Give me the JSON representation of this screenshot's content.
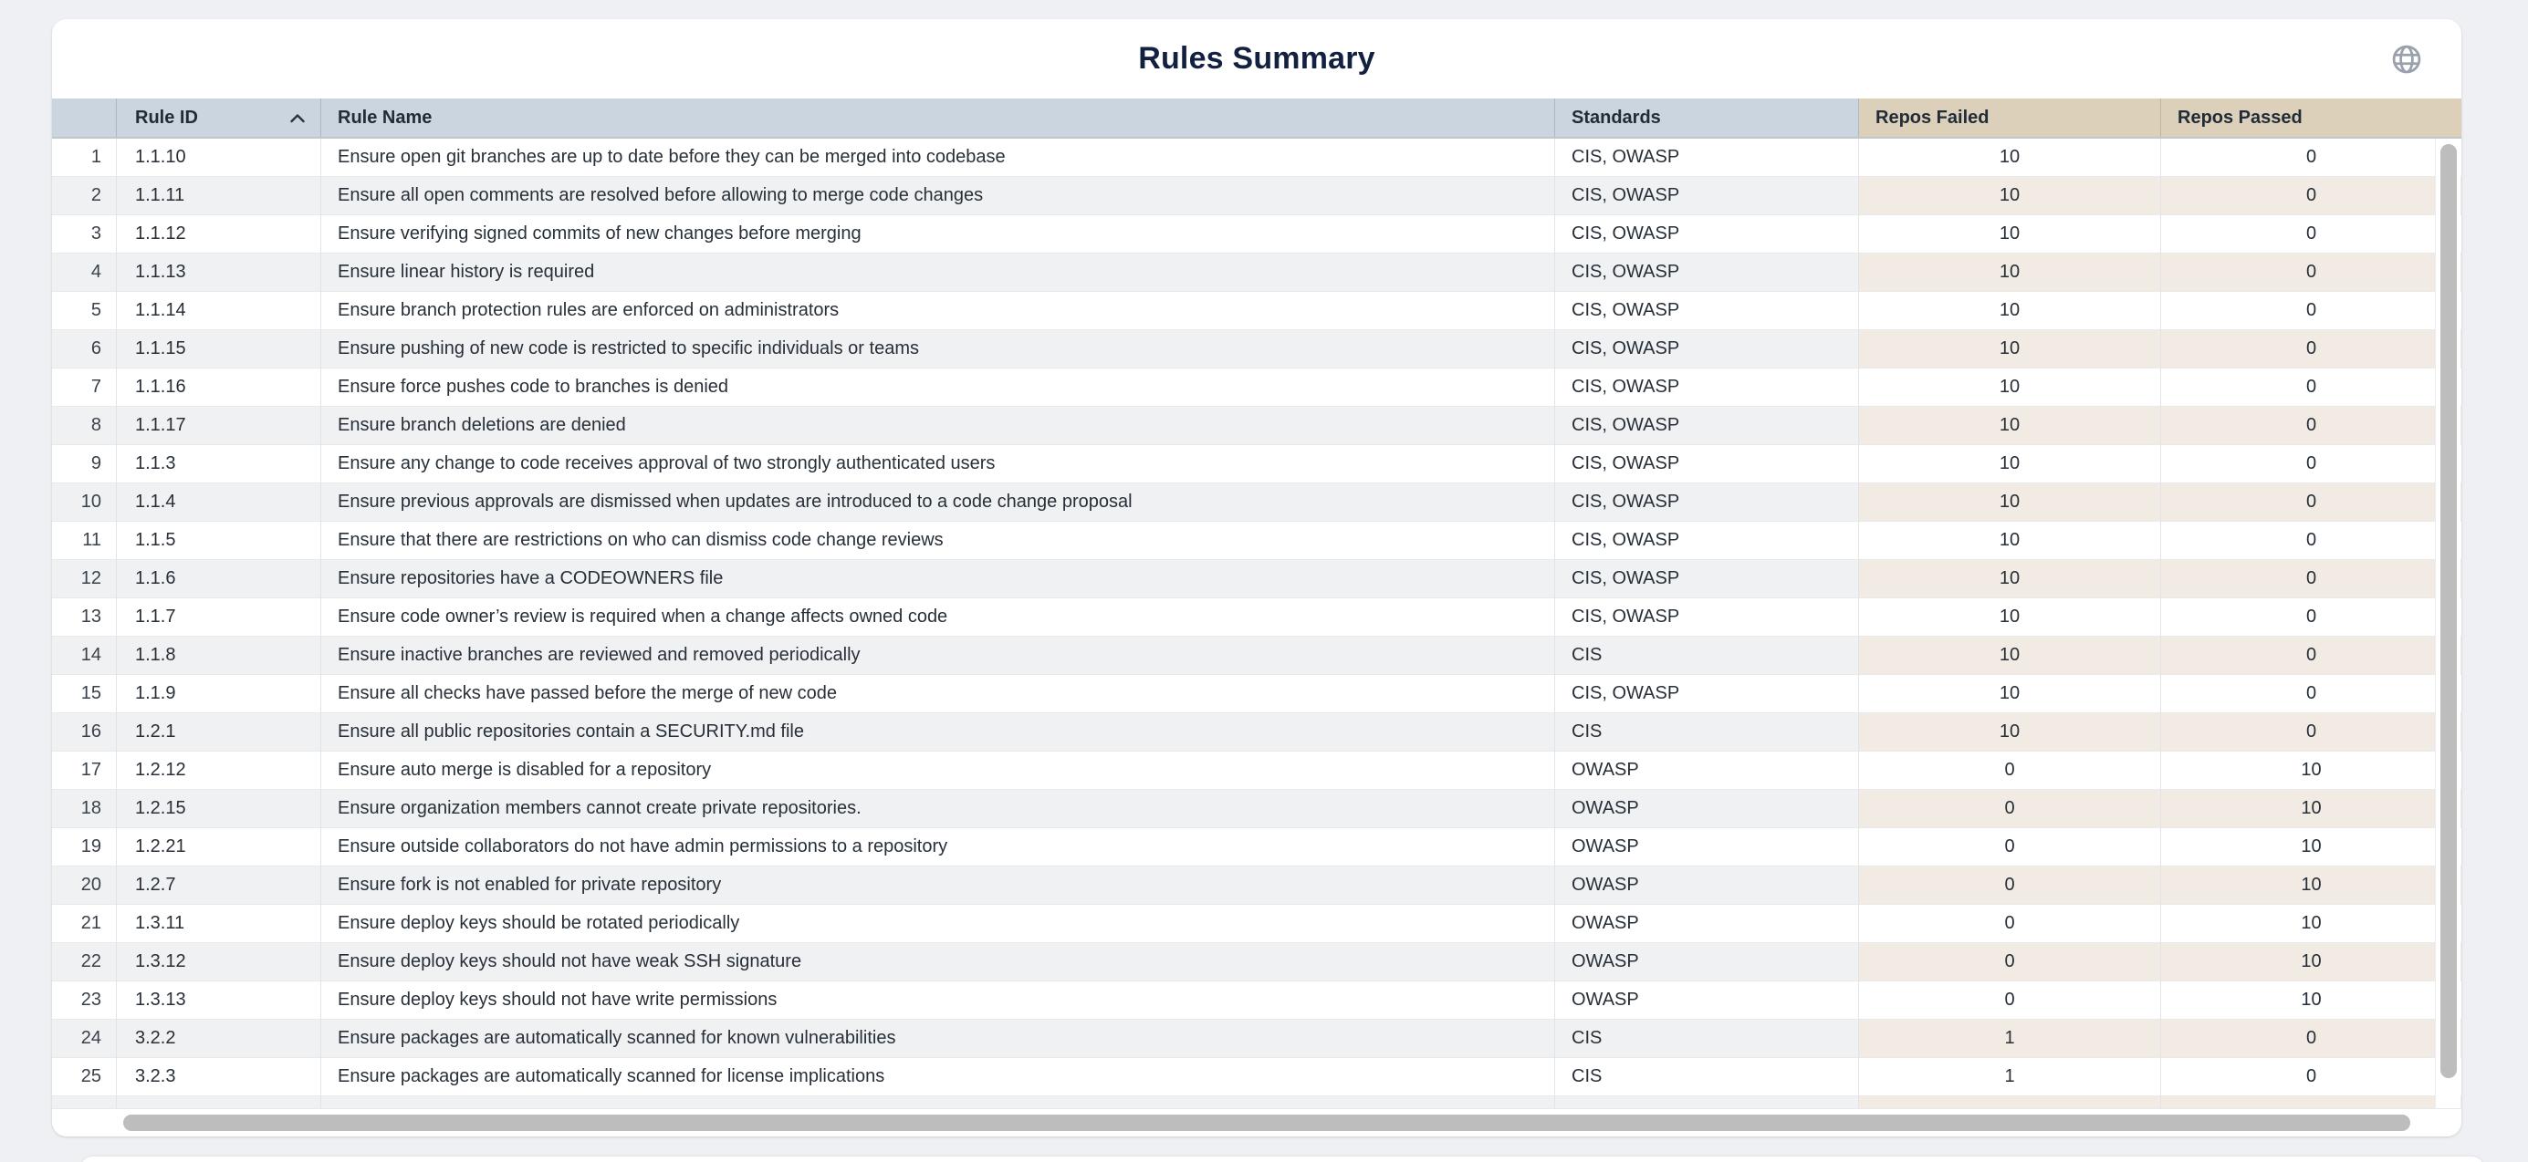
{
  "page": {
    "title": "Rules Summary"
  },
  "icons": {
    "header_action": "globe-icon",
    "rule_id_sort": "sort-ascending-icon"
  },
  "colors": {
    "page_bg": "#eef0f3",
    "header_blue": "#cbd5df",
    "header_tan": "#ddd0ba",
    "stripe_gray": "#f0f1f2",
    "stripe_cream": "#f2ebe3",
    "scrollbar_thumb": "#bdbdbd",
    "title_text": "#132140",
    "body_text": "#272f38"
  },
  "table": {
    "columns": [
      {
        "key": "num",
        "label": ""
      },
      {
        "key": "id",
        "label": "Rule ID",
        "sort": "asc"
      },
      {
        "key": "name",
        "label": "Rule Name"
      },
      {
        "key": "standards",
        "label": "Standards"
      },
      {
        "key": "failed",
        "label": "Repos Failed"
      },
      {
        "key": "passed",
        "label": "Repos Passed"
      }
    ],
    "rows": [
      {
        "num": "1",
        "id": "1.1.10",
        "name": "Ensure open git branches are up to date before they can be merged into codebase",
        "standards": "CIS, OWASP",
        "failed": "10",
        "passed": "0"
      },
      {
        "num": "2",
        "id": "1.1.11",
        "name": "Ensure all open comments are resolved before allowing to merge code changes",
        "standards": "CIS, OWASP",
        "failed": "10",
        "passed": "0"
      },
      {
        "num": "3",
        "id": "1.1.12",
        "name": "Ensure verifying signed commits of new changes before merging",
        "standards": "CIS, OWASP",
        "failed": "10",
        "passed": "0"
      },
      {
        "num": "4",
        "id": "1.1.13",
        "name": "Ensure linear history is required",
        "standards": "CIS, OWASP",
        "failed": "10",
        "passed": "0"
      },
      {
        "num": "5",
        "id": "1.1.14",
        "name": "Ensure branch protection rules are enforced on administrators",
        "standards": "CIS, OWASP",
        "failed": "10",
        "passed": "0"
      },
      {
        "num": "6",
        "id": "1.1.15",
        "name": "Ensure pushing of new code is restricted to specific individuals or teams",
        "standards": "CIS, OWASP",
        "failed": "10",
        "passed": "0"
      },
      {
        "num": "7",
        "id": "1.1.16",
        "name": "Ensure force pushes code to branches is denied",
        "standards": "CIS, OWASP",
        "failed": "10",
        "passed": "0"
      },
      {
        "num": "8",
        "id": "1.1.17",
        "name": "Ensure branch deletions are denied",
        "standards": "CIS, OWASP",
        "failed": "10",
        "passed": "0"
      },
      {
        "num": "9",
        "id": "1.1.3",
        "name": "Ensure any change to code receives approval of two strongly authenticated users",
        "standards": "CIS, OWASP",
        "failed": "10",
        "passed": "0"
      },
      {
        "num": "10",
        "id": "1.1.4",
        "name": "Ensure previous approvals are dismissed when updates are introduced to a code change proposal",
        "standards": "CIS, OWASP",
        "failed": "10",
        "passed": "0"
      },
      {
        "num": "11",
        "id": "1.1.5",
        "name": "Ensure that there are restrictions on who can dismiss code change reviews",
        "standards": "CIS, OWASP",
        "failed": "10",
        "passed": "0"
      },
      {
        "num": "12",
        "id": "1.1.6",
        "name": "Ensure repositories have a CODEOWNERS file",
        "standards": "CIS, OWASP",
        "failed": "10",
        "passed": "0"
      },
      {
        "num": "13",
        "id": "1.1.7",
        "name": "Ensure code owner’s review is required when a change affects owned code",
        "standards": "CIS, OWASP",
        "failed": "10",
        "passed": "0"
      },
      {
        "num": "14",
        "id": "1.1.8",
        "name": "Ensure inactive branches are reviewed and removed periodically",
        "standards": "CIS",
        "failed": "10",
        "passed": "0"
      },
      {
        "num": "15",
        "id": "1.1.9",
        "name": "Ensure all checks have passed before the merge of new code",
        "standards": "CIS, OWASP",
        "failed": "10",
        "passed": "0"
      },
      {
        "num": "16",
        "id": "1.2.1",
        "name": "Ensure all public repositories contain a SECURITY.md file",
        "standards": "CIS",
        "failed": "10",
        "passed": "0"
      },
      {
        "num": "17",
        "id": "1.2.12",
        "name": "Ensure auto merge is disabled for a repository",
        "standards": "OWASP",
        "failed": "0",
        "passed": "10"
      },
      {
        "num": "18",
        "id": "1.2.15",
        "name": "Ensure organization members cannot create private repositories.",
        "standards": "OWASP",
        "failed": "0",
        "passed": "10"
      },
      {
        "num": "19",
        "id": "1.2.21",
        "name": "Ensure outside collaborators do not have admin permissions to a repository",
        "standards": "OWASP",
        "failed": "0",
        "passed": "10"
      },
      {
        "num": "20",
        "id": "1.2.7",
        "name": "Ensure fork is not enabled for private repository",
        "standards": "OWASP",
        "failed": "0",
        "passed": "10"
      },
      {
        "num": "21",
        "id": "1.3.11",
        "name": "Ensure deploy keys should be rotated periodically",
        "standards": "OWASP",
        "failed": "0",
        "passed": "10"
      },
      {
        "num": "22",
        "id": "1.3.12",
        "name": "Ensure deploy keys should not have weak SSH signature",
        "standards": "OWASP",
        "failed": "0",
        "passed": "10"
      },
      {
        "num": "23",
        "id": "1.3.13",
        "name": "Ensure deploy keys should not have write permissions",
        "standards": "OWASP",
        "failed": "0",
        "passed": "10"
      },
      {
        "num": "24",
        "id": "3.2.2",
        "name": "Ensure packages are automatically scanned for known vulnerabilities",
        "standards": "CIS",
        "failed": "1",
        "passed": "0"
      },
      {
        "num": "25",
        "id": "3.2.3",
        "name": "Ensure packages are automatically scanned for license implications",
        "standards": "CIS",
        "failed": "1",
        "passed": "0"
      }
    ]
  }
}
